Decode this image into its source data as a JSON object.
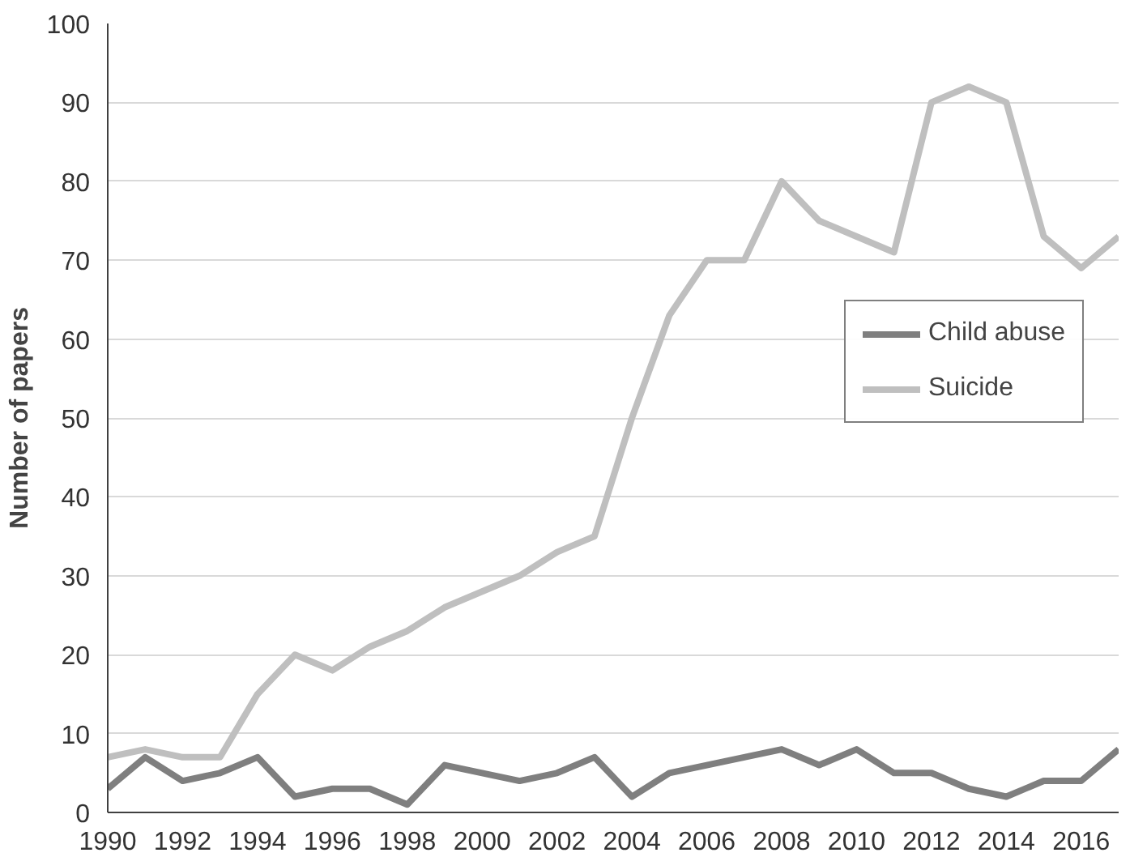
{
  "chart_data": {
    "type": "line",
    "ylabel": "Number of papers",
    "x": [
      1990,
      1991,
      1992,
      1993,
      1994,
      1995,
      1996,
      1997,
      1998,
      1999,
      2000,
      2001,
      2002,
      2003,
      2004,
      2005,
      2006,
      2007,
      2008,
      2009,
      2010,
      2011,
      2012,
      2013,
      2014,
      2015,
      2016,
      2017
    ],
    "series": [
      {
        "name": "Child abuse",
        "color": "#7f7f7f",
        "values": [
          3,
          7,
          4,
          5,
          7,
          2,
          3,
          3,
          1,
          6,
          5,
          4,
          5,
          7,
          2,
          5,
          6,
          7,
          8,
          6,
          8,
          5,
          5,
          3,
          2,
          4,
          4,
          8
        ]
      },
      {
        "name": "Suicide",
        "color": "#bfbfbf",
        "values": [
          7,
          8,
          7,
          7,
          15,
          20,
          18,
          21,
          23,
          26,
          28,
          30,
          33,
          35,
          50,
          63,
          70,
          70,
          80,
          75,
          73,
          71,
          90,
          92,
          90,
          73,
          69,
          73
        ]
      }
    ],
    "xlim": [
      1990,
      2017
    ],
    "xticks": [
      1990,
      1992,
      1994,
      1996,
      1998,
      2000,
      2002,
      2004,
      2006,
      2008,
      2010,
      2012,
      2014,
      2016
    ],
    "ylim": [
      0,
      100
    ],
    "yticks": [
      0,
      10,
      20,
      30,
      40,
      50,
      60,
      70,
      80,
      90,
      100
    ],
    "grid": "y",
    "legend": "right",
    "line_style": "solid",
    "marker": "none"
  }
}
